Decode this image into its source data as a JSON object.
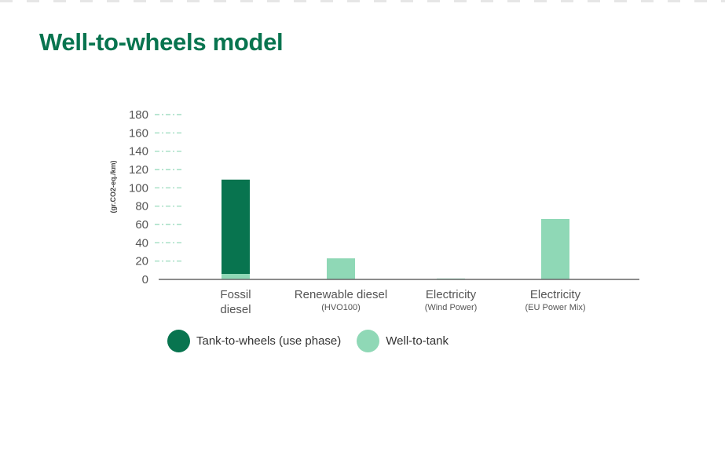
{
  "page": {
    "title": "Well-to-wheels model"
  },
  "chart_data": {
    "type": "bar",
    "stacked": true,
    "ylabel": "(gr.CO2-eq./km)",
    "ylim": [
      0,
      180
    ],
    "yticks": [
      0,
      20,
      40,
      60,
      80,
      100,
      120,
      140,
      160,
      180
    ],
    "categories": [
      {
        "line1": "Fossil",
        "line2": "diesel",
        "small": false
      },
      {
        "line1": "Renewable diesel",
        "line2": "(HVO100)",
        "small": true
      },
      {
        "line1": "Electricity",
        "line2": "(Wind Power)",
        "small": true
      },
      {
        "line1": "Electricity",
        "line2": "(EU Power Mix)",
        "small": true
      }
    ],
    "series": [
      {
        "name": "Well-to-tank",
        "color": "#8fd8b6",
        "values": [
          6,
          23,
          1,
          66
        ]
      },
      {
        "name": "Tank-to-wheels (use phase)",
        "color": "#08744f",
        "values": [
          103,
          0,
          0,
          0
        ]
      }
    ],
    "legend": [
      {
        "label": "Tank-to-wheels (use phase)",
        "color": "#08744f"
      },
      {
        "label": "Well-to-tank",
        "color": "#8fd8b6"
      }
    ],
    "legend_position": "bottom-left",
    "grid": "dash-dot tick marks"
  }
}
